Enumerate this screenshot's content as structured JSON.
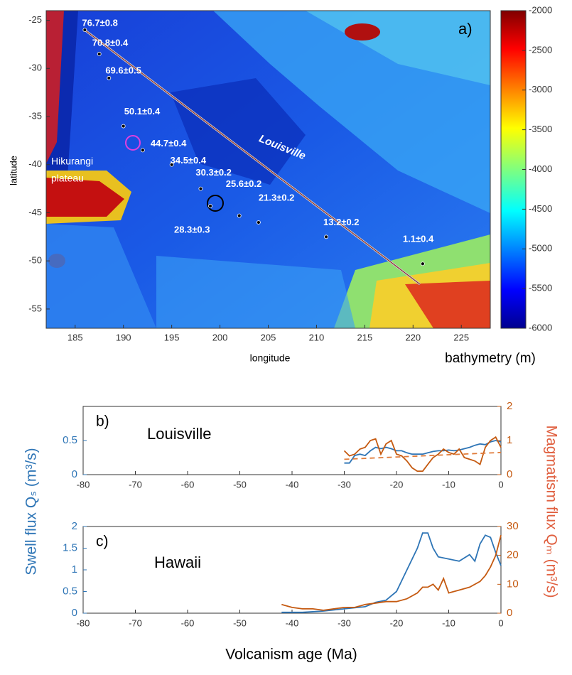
{
  "figure": {
    "xlabel": "Volcanism age (Ma)",
    "ylabel": "Swell flux Qₛ (m³/s)",
    "y2label": "Magmatism flux Qₘ (m³/s)"
  },
  "chart_data": [
    {
      "type": "map",
      "panel": "a)",
      "xlabel": "longitude",
      "ylabel": "latitude",
      "colorbar_label": "bathymetry (m)",
      "xlim": [
        182,
        228
      ],
      "ylim": [
        -57,
        -24
      ],
      "xticks": [
        185,
        190,
        195,
        200,
        205,
        210,
        215,
        220,
        225
      ],
      "yticks": [
        -25,
        -30,
        -35,
        -40,
        -45,
        -50,
        -55
      ],
      "clim": [
        -6000,
        -2000
      ],
      "cticks": [
        -2000,
        -2500,
        -3000,
        -3500,
        -4000,
        -4500,
        -5000,
        -5500,
        -6000
      ],
      "region_labels": [
        "Louisville",
        [
          "Hikurangi",
          "plateau"
        ]
      ],
      "samples": [
        {
          "label": "76.7±0.8",
          "x": 186,
          "y": -26
        },
        {
          "label": "70.8±0.4",
          "x": 187.5,
          "y": -28.5
        },
        {
          "label": "69.6±0.5",
          "x": 188.5,
          "y": -31
        },
        {
          "label": "50.1±0.4",
          "x": 190,
          "y": -36
        },
        {
          "label": "44.7±0.4",
          "x": 192,
          "y": -38.5
        },
        {
          "label": "34.5±0.4",
          "x": 195,
          "y": -40
        },
        {
          "label": "30.3±0.2",
          "x": 198,
          "y": -42.5
        },
        {
          "label": "28.3±0.3",
          "x": 199,
          "y": -44.3
        },
        {
          "label": "25.6±0.2",
          "x": 202,
          "y": -45.3
        },
        {
          "label": "21.3±0.2",
          "x": 204,
          "y": -46
        },
        {
          "label": "13.2±0.2",
          "x": 211,
          "y": -47.5
        },
        {
          "label": "1.1±0.4",
          "x": 221,
          "y": -50.3
        }
      ]
    },
    {
      "type": "line",
      "panel": "b)",
      "label": "Louisville",
      "xlim": [
        -80,
        0
      ],
      "xticks": [
        -80,
        -70,
        -60,
        -50,
        -40,
        -30,
        -20,
        -10,
        0
      ],
      "ylim": [
        0,
        1
      ],
      "yticks": [
        0,
        0.5
      ],
      "y2lim": [
        0,
        2
      ],
      "y2ticks": [
        0,
        1,
        2
      ],
      "series": [
        {
          "color": "#2e75b6",
          "x": [
            -30,
            -29,
            -28,
            -27,
            -26,
            -25,
            -24,
            -23,
            -22,
            -21,
            -20,
            -19,
            -18,
            -17,
            -16,
            -15,
            -14,
            -13,
            -12,
            -11,
            -10,
            -9,
            -8,
            -7,
            -6,
            -5,
            -4,
            -3,
            -2,
            -1,
            0
          ],
          "values": [
            0.17,
            0.17,
            0.28,
            0.3,
            0.28,
            0.35,
            0.4,
            0.38,
            0.4,
            0.38,
            0.35,
            0.35,
            0.32,
            0.3,
            0.3,
            0.3,
            0.32,
            0.34,
            0.35,
            0.35,
            0.36,
            0.35,
            0.36,
            0.38,
            0.4,
            0.43,
            0.45,
            0.44,
            0.48,
            0.5,
            0.48
          ]
        },
        {
          "color": "#c55a11",
          "axis": "y2",
          "x": [
            -30,
            -29,
            -28,
            -27,
            -26,
            -25,
            -24,
            -23,
            -22,
            -21,
            -20,
            -19,
            -18,
            -17,
            -16,
            -15,
            -14,
            -13,
            -12,
            -11,
            -10,
            -9,
            -8,
            -7,
            -6,
            -5,
            -4,
            -3,
            -2,
            -1,
            0
          ],
          "values": [
            0.7,
            0.55,
            0.6,
            0.75,
            0.8,
            1.0,
            1.05,
            0.6,
            0.9,
            1.0,
            0.6,
            0.55,
            0.4,
            0.2,
            0.1,
            0.1,
            0.3,
            0.5,
            0.6,
            0.75,
            0.65,
            0.6,
            0.75,
            0.5,
            0.45,
            0.4,
            0.3,
            0.8,
            1.0,
            1.1,
            0.8
          ]
        },
        {
          "color": "#e07b39",
          "axis": "y2",
          "dash": true,
          "x": [
            -30,
            0
          ],
          "values": [
            0.45,
            0.65
          ]
        }
      ]
    },
    {
      "type": "line",
      "panel": "c)",
      "label": "Hawaii",
      "xlim": [
        -80,
        0
      ],
      "xticks": [
        -80,
        -70,
        -60,
        -50,
        -40,
        -30,
        -20,
        -10,
        0
      ],
      "ylim": [
        0,
        2
      ],
      "yticks": [
        0,
        0.5,
        1,
        1.5,
        2
      ],
      "y2lim": [
        0,
        30
      ],
      "y2ticks": [
        0,
        10,
        20,
        30
      ],
      "series": [
        {
          "color": "#2e75b6",
          "x": [
            -42,
            -38,
            -34,
            -30,
            -26,
            -24,
            -22,
            -20,
            -18,
            -16,
            -15,
            -14,
            -13,
            -12,
            -10,
            -8,
            -6,
            -5,
            -4,
            -3,
            -2,
            -1,
            0
          ],
          "values": [
            0.02,
            0.02,
            0.05,
            0.1,
            0.15,
            0.25,
            0.3,
            0.5,
            1.0,
            1.5,
            1.85,
            1.85,
            1.5,
            1.3,
            1.25,
            1.2,
            1.35,
            1.2,
            1.6,
            1.8,
            1.75,
            1.4,
            1.1
          ]
        },
        {
          "color": "#c55a11",
          "axis": "y2",
          "x": [
            -42,
            -40,
            -38,
            -36,
            -34,
            -32,
            -30,
            -28,
            -26,
            -24,
            -22,
            -20,
            -18,
            -16,
            -15,
            -14,
            -13,
            -12,
            -11,
            -10,
            -8,
            -6,
            -4,
            -3,
            -2,
            -1,
            0
          ],
          "values": [
            3,
            2,
            1.5,
            1.5,
            1,
            1.5,
            2,
            2,
            3,
            3.5,
            4,
            4,
            5,
            7,
            9,
            9,
            10,
            8,
            12,
            7,
            8,
            9,
            11,
            13,
            16,
            20,
            27
          ]
        }
      ]
    }
  ]
}
